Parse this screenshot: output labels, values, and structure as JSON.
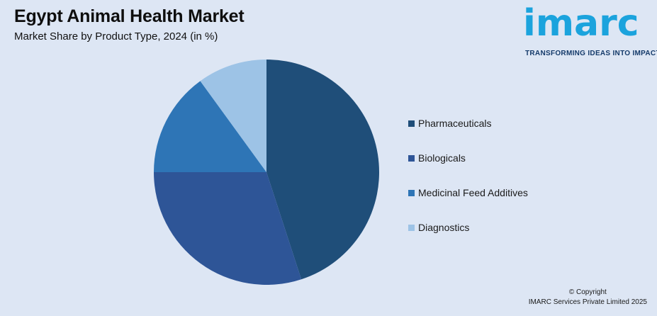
{
  "header": {
    "title": "Egypt Animal Health Market",
    "subtitle": "Market Share by Product Type, 2024 (in %)"
  },
  "logo": {
    "word": "imarc",
    "tagline": "TRANSFORMING IDEAS INTO IMPACT"
  },
  "footer": {
    "copyright": "© Copyright",
    "company": "IMARC Services Private Limited 2025"
  },
  "chart_data": {
    "type": "pie",
    "categories": [
      "Pharmaceuticals",
      "Biologicals",
      "Medicinal Feed Additives",
      "Diagnostics"
    ],
    "values": [
      45,
      30,
      15,
      10
    ],
    "colors": [
      "#1f4e79",
      "#2e5597",
      "#2e75b6",
      "#9dc3e6"
    ],
    "legend_position": "right"
  }
}
